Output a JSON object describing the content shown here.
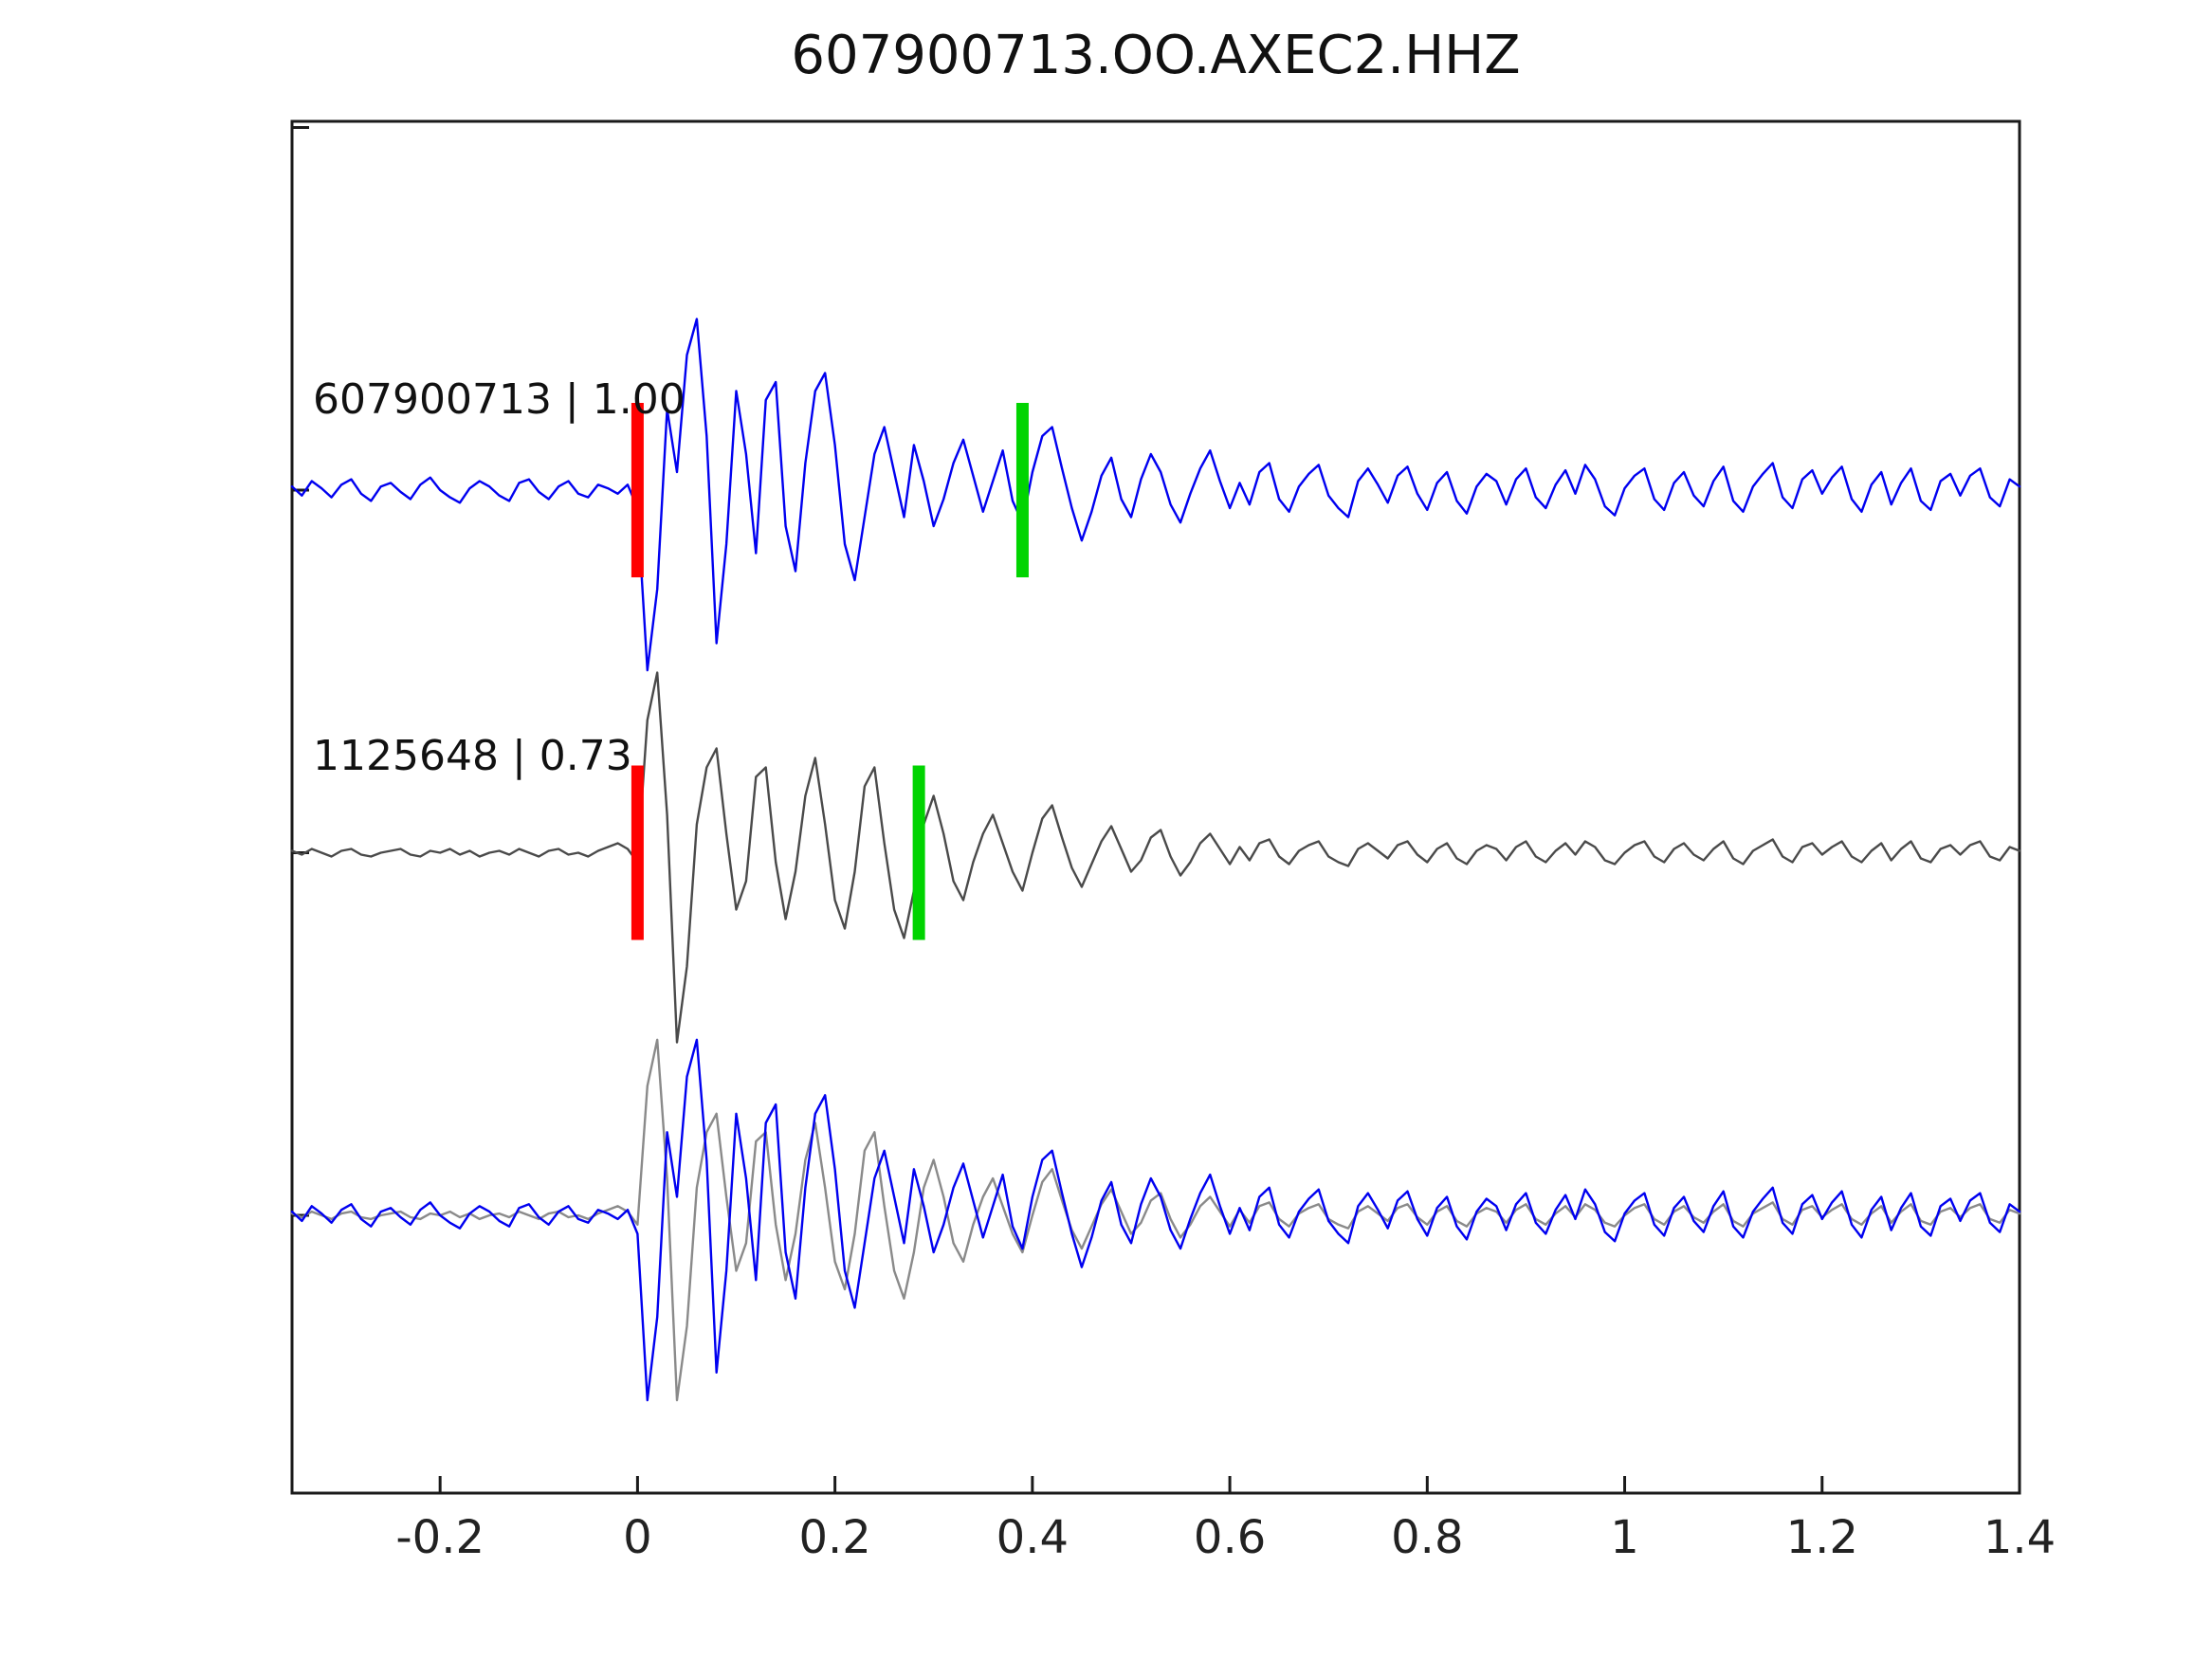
{
  "chart_data": {
    "type": "line",
    "title": "607900713.OO.AXEC2.HHZ",
    "xlabel": "",
    "ylabel": "",
    "grid": false,
    "legend": "none",
    "xlim": [
      -0.35,
      1.4
    ],
    "x_start": -0.35,
    "dt": 0.01,
    "x_ticks": [
      -0.2,
      0,
      0.2,
      0.4,
      0.6,
      0.8,
      1,
      1.2,
      1.4
    ],
    "x_tick_labels": [
      "-0.2",
      "0",
      "0.2",
      "0.4",
      "0.6",
      "0.8",
      "1",
      "1.2",
      "1.4"
    ],
    "colors": {
      "template_blue": "#0000f0",
      "detection_dark_gray": "#4a4a4a",
      "overlay_gray": "#8a8a8a",
      "pick_red": "#ff0000",
      "pick_green": "#00d400",
      "axis": "#1a1a1a"
    },
    "series": [
      {
        "name": "template",
        "color": "#0000f0",
        "values": [
          0.02,
          -0.03,
          0.05,
          0.01,
          -0.04,
          0.03,
          0.06,
          -0.02,
          -0.06,
          0.02,
          0.04,
          -0.01,
          -0.05,
          0.03,
          0.07,
          0,
          -0.04,
          -0.07,
          0.01,
          0.05,
          0.02,
          -0.03,
          -0.06,
          0.04,
          0.06,
          -0.01,
          -0.05,
          0.02,
          0.05,
          -0.02,
          -0.04,
          0.03,
          0.01,
          -0.02,
          0.03,
          -0.1,
          -1,
          -0.55,
          0.45,
          0.1,
          0.75,
          0.95,
          0.3,
          -0.85,
          -0.3,
          0.55,
          0.2,
          -0.35,
          0.5,
          0.6,
          -0.2,
          -0.45,
          0.15,
          0.55,
          0.65,
          0.25,
          -0.3,
          -0.5,
          -0.15,
          0.2,
          0.35,
          0.1,
          -0.15,
          0.25,
          0.05,
          -0.2,
          -0.05,
          0.15,
          0.28,
          0.08,
          -0.12,
          0.05,
          0.22,
          -0.06,
          -0.18,
          0.1,
          0.3,
          0.35,
          0.12,
          -0.1,
          -0.28,
          -0.12,
          0.08,
          0.18,
          -0.05,
          -0.15,
          0.06,
          0.2,
          0.1,
          -0.08,
          -0.18,
          -0.02,
          0.12,
          0.22,
          0.05,
          -0.1,
          0.04,
          -0.08,
          0.1,
          0.15,
          -0.05,
          -0.12,
          0.02,
          0.09,
          0.14,
          -0.03,
          -0.1,
          -0.15,
          0.05,
          0.12,
          0.03,
          -0.07,
          0.08,
          0.13,
          -0.02,
          -0.11,
          0.04,
          0.1,
          -0.06,
          -0.13,
          0.02,
          0.09,
          0.05,
          -0.08,
          0.06,
          0.12,
          -0.04,
          -0.1,
          0.03,
          0.11,
          -0.02,
          0.14,
          0.06,
          -0.09,
          -0.14,
          0.01,
          0.08,
          0.12,
          -0.05,
          -0.11,
          0.04,
          0.1,
          -0.03,
          -0.09,
          0.05,
          0.13,
          -0.06,
          -0.12,
          0.02,
          0.09,
          0.15,
          -0.04,
          -0.1,
          0.06,
          0.11,
          -0.02,
          0.07,
          0.13,
          -0.05,
          -0.12,
          0.03,
          0.1,
          -0.08,
          0.04,
          0.12,
          -0.06,
          -0.11,
          0.05,
          0.09,
          -0.03,
          0.08,
          0.12,
          -0.04,
          -0.09,
          0.06,
          0.02
        ]
      },
      {
        "name": "detection",
        "color": "#4a4a4a",
        "values": [
          0.01,
          -0.01,
          0.02,
          0,
          -0.02,
          0.01,
          0.02,
          -0.01,
          -0.02,
          0,
          0.01,
          0.02,
          -0.01,
          -0.02,
          0.01,
          0,
          0.02,
          -0.01,
          0.01,
          -0.02,
          0,
          0.01,
          -0.01,
          0.02,
          0,
          -0.02,
          0.01,
          0.02,
          -0.01,
          0,
          -0.02,
          0.01,
          0.03,
          0.05,
          0.02,
          -0.05,
          0.7,
          0.95,
          0.2,
          -1,
          -0.6,
          0.15,
          0.45,
          0.55,
          0.1,
          -0.3,
          -0.15,
          0.4,
          0.45,
          -0.05,
          -0.35,
          -0.1,
          0.3,
          0.5,
          0.15,
          -0.25,
          -0.4,
          -0.1,
          0.35,
          0.45,
          0.05,
          -0.3,
          -0.45,
          -0.2,
          0.15,
          0.3,
          0.1,
          -0.15,
          -0.25,
          -0.05,
          0.1,
          0.2,
          0.05,
          -0.1,
          -0.2,
          0,
          0.18,
          0.25,
          0.08,
          -0.08,
          -0.18,
          -0.06,
          0.06,
          0.14,
          0.02,
          -0.1,
          -0.04,
          0.08,
          0.12,
          -0.02,
          -0.12,
          -0.05,
          0.05,
          0.1,
          0.02,
          -0.06,
          0.03,
          -0.04,
          0.05,
          0.07,
          -0.02,
          -0.06,
          0.01,
          0.04,
          0.06,
          -0.02,
          -0.05,
          -0.07,
          0.02,
          0.05,
          0.01,
          -0.03,
          0.04,
          0.06,
          -0.01,
          -0.05,
          0.02,
          0.05,
          -0.03,
          -0.06,
          0.01,
          0.04,
          0.02,
          -0.04,
          0.03,
          0.06,
          -0.02,
          -0.05,
          0.01,
          0.05,
          -0.01,
          0.06,
          0.03,
          -0.04,
          -0.06,
          0,
          0.04,
          0.06,
          -0.02,
          -0.05,
          0.02,
          0.05,
          -0.01,
          -0.04,
          0.02,
          0.06,
          -0.03,
          -0.06,
          0.01,
          0.04,
          0.07,
          -0.02,
          -0.05,
          0.03,
          0.05,
          -0.01,
          0.03,
          0.06,
          -0.02,
          -0.05,
          0.01,
          0.05,
          -0.04,
          0.02,
          0.06,
          -0.03,
          -0.05,
          0.02,
          0.04,
          -0.01,
          0.04,
          0.06,
          -0.02,
          -0.04,
          0.03,
          0.01
        ]
      }
    ],
    "panels": [
      {
        "label": "607900713 | 1.00",
        "traces": [
          {
            "series": "template",
            "color": "#0000f0"
          }
        ],
        "markers": [
          {
            "x": 0,
            "color": "#ff0000",
            "name": "red-pick-marker-template"
          },
          {
            "x": 0.39,
            "color": "#00d400",
            "name": "green-pick-marker-template"
          }
        ]
      },
      {
        "label": "1125648 | 0.73",
        "traces": [
          {
            "series": "detection",
            "color": "#4a4a4a"
          }
        ],
        "markers": [
          {
            "x": 0,
            "color": "#ff0000",
            "name": "red-pick-marker-detection"
          },
          {
            "x": 0.285,
            "color": "#00d400",
            "name": "green-pick-marker-detection"
          }
        ]
      },
      {
        "label": "",
        "traces": [
          {
            "series": "detection",
            "color": "#8a8a8a"
          },
          {
            "series": "template",
            "color": "#0000f0"
          }
        ],
        "markers": []
      }
    ]
  }
}
